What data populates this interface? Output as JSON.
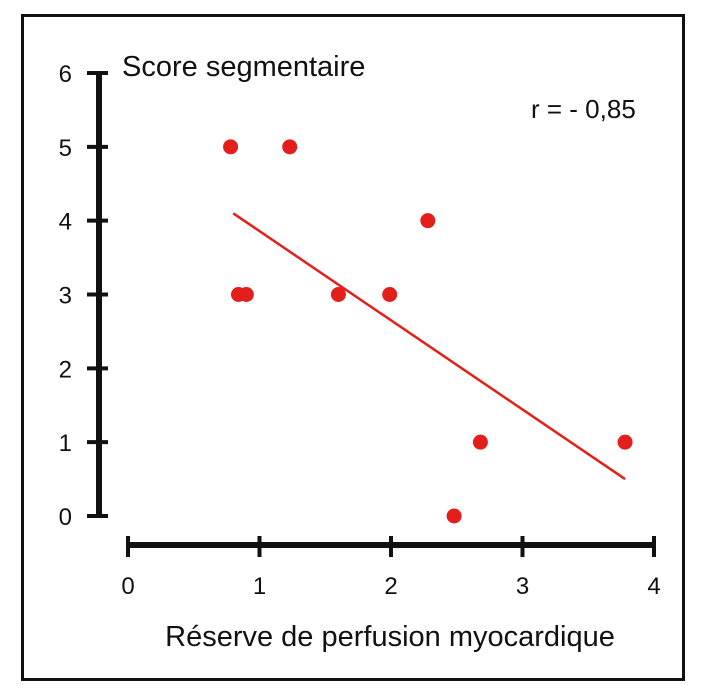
{
  "chart_data": {
    "type": "scatter",
    "title": "Score segmentaire",
    "xlabel": "Réserve de perfusion myocardique",
    "ylabel": "",
    "xlim": [
      0,
      4
    ],
    "ylim": [
      0,
      6
    ],
    "xticks": [
      0,
      1,
      2,
      3,
      4
    ],
    "yticks": [
      0,
      1,
      2,
      3,
      4,
      5,
      6
    ],
    "annotation": "r = - 0,85",
    "grid": false,
    "points": [
      {
        "x": 0.78,
        "y": 5
      },
      {
        "x": 1.23,
        "y": 5
      },
      {
        "x": 0.84,
        "y": 3
      },
      {
        "x": 0.9,
        "y": 3
      },
      {
        "x": 1.6,
        "y": 3
      },
      {
        "x": 1.99,
        "y": 3
      },
      {
        "x": 2.28,
        "y": 4
      },
      {
        "x": 2.48,
        "y": 0
      },
      {
        "x": 2.68,
        "y": 1
      },
      {
        "x": 3.78,
        "y": 1
      }
    ],
    "regression_line": {
      "x": [
        0.8,
        3.78
      ],
      "y": [
        4.1,
        0.5
      ]
    },
    "colors": {
      "points": "#e21f1a",
      "line": "#e21f1a",
      "axes": "#111111"
    }
  }
}
